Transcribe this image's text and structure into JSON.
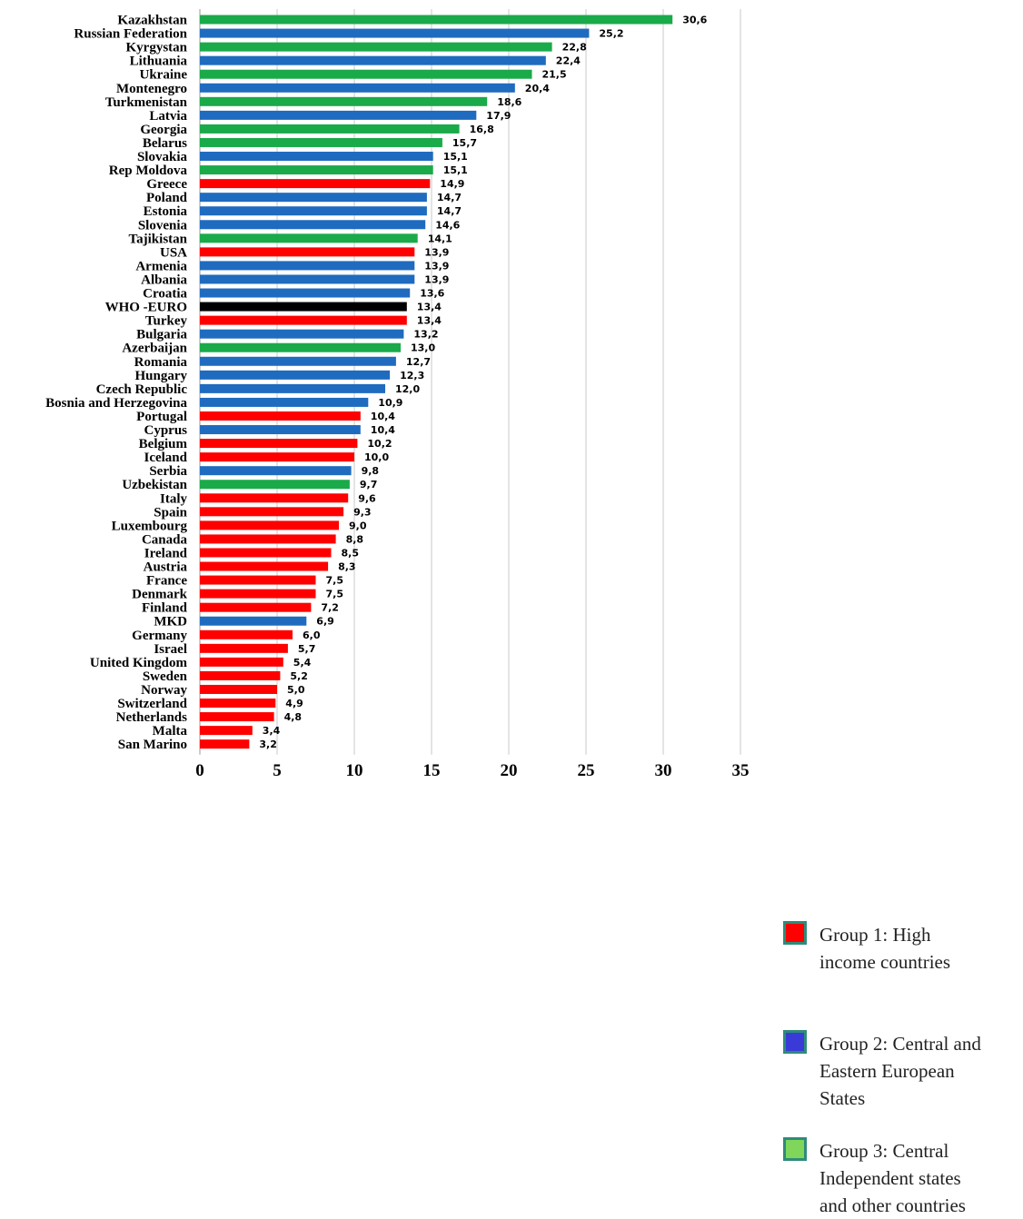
{
  "chart_data": {
    "type": "bar",
    "orientation": "horizontal",
    "xlim": [
      0,
      35
    ],
    "xticks": [
      0,
      5,
      10,
      15,
      20,
      25,
      30,
      35
    ],
    "xtick_labels": [
      "0",
      "5",
      "10",
      "15",
      "20",
      "25",
      "30",
      "35"
    ],
    "grid": "vertical gridlines",
    "legend_position": "right",
    "colors": {
      "group1": "#ff0000",
      "group2": "#1f6bbf",
      "group3": "#1aaa4a",
      "reference": "#000000",
      "legend_group2": "#3a3ad8",
      "legend_group3": "#7fd65a"
    },
    "bars": [
      {
        "label": "Kazakhstan",
        "value": 30.6,
        "value_label": "30,6",
        "group": "group3"
      },
      {
        "label": "Russian Federation",
        "value": 25.2,
        "value_label": "25,2",
        "group": "group2"
      },
      {
        "label": "Kyrgystan",
        "value": 22.8,
        "value_label": "22,8",
        "group": "group3"
      },
      {
        "label": "Lithuania",
        "value": 22.4,
        "value_label": "22,4",
        "group": "group2"
      },
      {
        "label": "Ukraine",
        "value": 21.5,
        "value_label": "21,5",
        "group": "group3"
      },
      {
        "label": "Montenegro",
        "value": 20.4,
        "value_label": "20,4",
        "group": "group2"
      },
      {
        "label": "Turkmenistan",
        "value": 18.6,
        "value_label": "18,6",
        "group": "group3"
      },
      {
        "label": "Latvia",
        "value": 17.9,
        "value_label": "17,9",
        "group": "group2"
      },
      {
        "label": "Georgia",
        "value": 16.8,
        "value_label": "16,8",
        "group": "group3"
      },
      {
        "label": "Belarus",
        "value": 15.7,
        "value_label": "15,7",
        "group": "group3"
      },
      {
        "label": "Slovakia",
        "value": 15.1,
        "value_label": "15,1",
        "group": "group2"
      },
      {
        "label": "Rep Moldova",
        "value": 15.1,
        "value_label": "15,1",
        "group": "group3"
      },
      {
        "label": "Greece",
        "value": 14.9,
        "value_label": "14,9",
        "group": "group1"
      },
      {
        "label": "Poland",
        "value": 14.7,
        "value_label": "14,7",
        "group": "group2"
      },
      {
        "label": "Estonia",
        "value": 14.7,
        "value_label": "14,7",
        "group": "group2"
      },
      {
        "label": "Slovenia",
        "value": 14.6,
        "value_label": "14,6",
        "group": "group2"
      },
      {
        "label": "Tajikistan",
        "value": 14.1,
        "value_label": "14,1",
        "group": "group3"
      },
      {
        "label": "USA",
        "value": 13.9,
        "value_label": "13,9",
        "group": "group1"
      },
      {
        "label": "Armenia",
        "value": 13.9,
        "value_label": "13,9",
        "group": "group2"
      },
      {
        "label": "Albania",
        "value": 13.9,
        "value_label": "13,9",
        "group": "group2"
      },
      {
        "label": "Croatia",
        "value": 13.6,
        "value_label": "13,6",
        "group": "group2"
      },
      {
        "label": "WHO -EURO",
        "value": 13.4,
        "value_label": "13,4",
        "group": "reference"
      },
      {
        "label": "Turkey",
        "value": 13.4,
        "value_label": "13,4",
        "group": "group1"
      },
      {
        "label": "Bulgaria",
        "value": 13.2,
        "value_label": "13,2",
        "group": "group2"
      },
      {
        "label": "Azerbaijan",
        "value": 13.0,
        "value_label": "13,0",
        "group": "group3"
      },
      {
        "label": "Romania",
        "value": 12.7,
        "value_label": "12,7",
        "group": "group2"
      },
      {
        "label": "Hungary",
        "value": 12.3,
        "value_label": "12,3",
        "group": "group2"
      },
      {
        "label": "Czech Republic",
        "value": 12.0,
        "value_label": "12,0",
        "group": "group2"
      },
      {
        "label": "Bosnia and Herzegovina",
        "value": 10.9,
        "value_label": "10,9",
        "group": "group2"
      },
      {
        "label": "Portugal",
        "value": 10.4,
        "value_label": "10,4",
        "group": "group1"
      },
      {
        "label": "Cyprus",
        "value": 10.4,
        "value_label": "10,4",
        "group": "group2"
      },
      {
        "label": "Belgium",
        "value": 10.2,
        "value_label": "10,2",
        "group": "group1"
      },
      {
        "label": "Iceland",
        "value": 10.0,
        "value_label": "10,0",
        "group": "group1"
      },
      {
        "label": "Serbia",
        "value": 9.8,
        "value_label": "9,8",
        "group": "group2"
      },
      {
        "label": "Uzbekistan",
        "value": 9.7,
        "value_label": "9,7",
        "group": "group3"
      },
      {
        "label": "Italy",
        "value": 9.6,
        "value_label": "9,6",
        "group": "group1"
      },
      {
        "label": "Spain",
        "value": 9.3,
        "value_label": "9,3",
        "group": "group1"
      },
      {
        "label": "Luxembourg",
        "value": 9.0,
        "value_label": "9,0",
        "group": "group1"
      },
      {
        "label": "Canada",
        "value": 8.8,
        "value_label": "8,8",
        "group": "group1"
      },
      {
        "label": "Ireland",
        "value": 8.5,
        "value_label": "8,5",
        "group": "group1"
      },
      {
        "label": "Austria",
        "value": 8.3,
        "value_label": "8,3",
        "group": "group1"
      },
      {
        "label": "France",
        "value": 7.5,
        "value_label": "7,5",
        "group": "group1"
      },
      {
        "label": "Denmark",
        "value": 7.5,
        "value_label": "7,5",
        "group": "group1"
      },
      {
        "label": "Finland",
        "value": 7.2,
        "value_label": "7,2",
        "group": "group1"
      },
      {
        "label": "MKD",
        "value": 6.9,
        "value_label": "6,9",
        "group": "group2"
      },
      {
        "label": "Germany",
        "value": 6.0,
        "value_label": "6,0",
        "group": "group1"
      },
      {
        "label": "Israel",
        "value": 5.7,
        "value_label": "5,7",
        "group": "group1"
      },
      {
        "label": "United Kingdom",
        "value": 5.4,
        "value_label": "5,4",
        "group": "group1"
      },
      {
        "label": "Sweden",
        "value": 5.2,
        "value_label": "5,2",
        "group": "group1"
      },
      {
        "label": "Norway",
        "value": 5.0,
        "value_label": "5,0",
        "group": "group1"
      },
      {
        "label": "Switzerland",
        "value": 4.9,
        "value_label": "4,9",
        "group": "group1"
      },
      {
        "label": "Netherlands",
        "value": 4.8,
        "value_label": "4,8",
        "group": "group1"
      },
      {
        "label": "Malta",
        "value": 3.4,
        "value_label": "3,4",
        "group": "group1"
      },
      {
        "label": "San Marino",
        "value": 3.2,
        "value_label": "3,2",
        "group": "group1"
      }
    ]
  },
  "legend": [
    {
      "text": "Group 1: High\nincome countries",
      "color": "#ff0000"
    },
    {
      "text": "Group 2: Central and\nEastern European\nStates",
      "color": "#3a3ad8"
    },
    {
      "text": "Group 3: Central\nIndependent states\nand other countries",
      "color": "#7fd65a"
    }
  ]
}
